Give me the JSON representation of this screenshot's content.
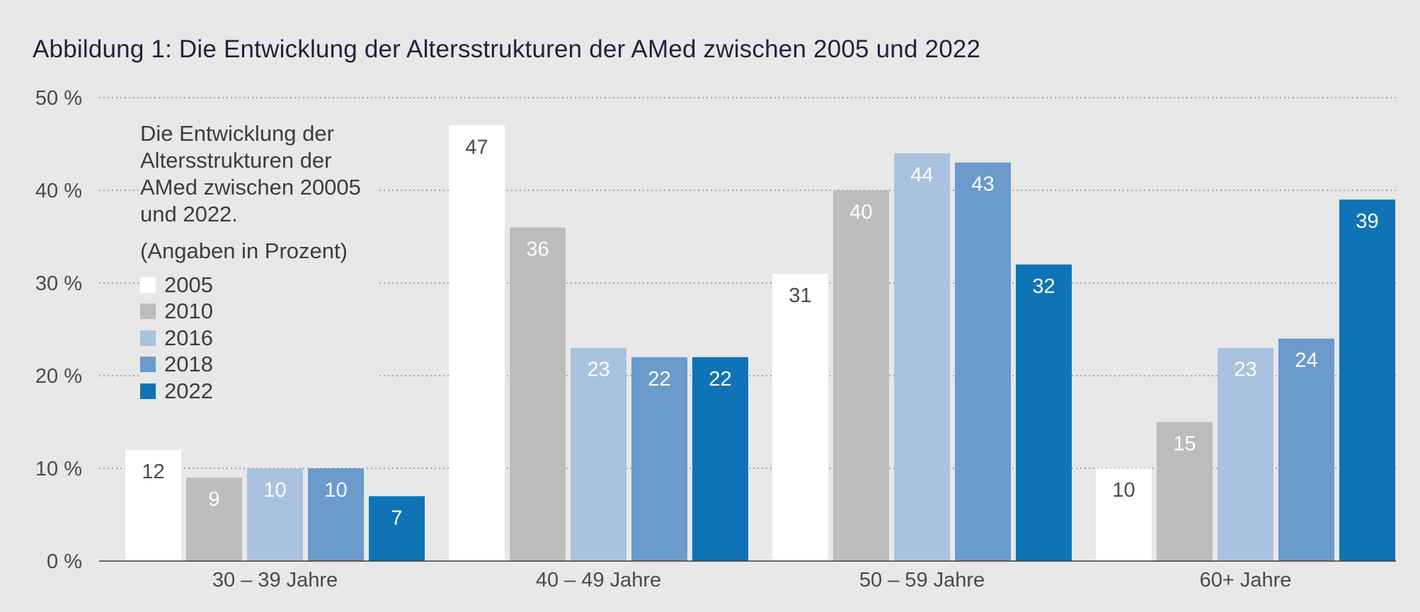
{
  "figure_title": "Abbildung 1: Die Entwicklung der Altersstrukturen der AMed zwischen 2005 und 2022",
  "legend": {
    "description": "Die Entwicklung der Altersstrukturen der AMed zwischen 20005 und 2022.",
    "note": "(Angaben in Prozent)"
  },
  "chart_data": {
    "type": "bar",
    "title": "Abbildung 1: Die Entwicklung der Altersstrukturen der AMed zwischen 2005 und 2022",
    "xlabel": "",
    "ylabel": "",
    "ylim": [
      0,
      50
    ],
    "yticks": [
      0,
      10,
      20,
      30,
      40,
      50
    ],
    "ytick_labels": [
      "0 %",
      "10 %",
      "20 %",
      "30 %",
      "40 %",
      "50 %"
    ],
    "grid": true,
    "legend_position": "top-left",
    "categories": [
      "30 – 39 Jahre",
      "40 – 49 Jahre",
      "50 – 59 Jahre",
      "60+ Jahre"
    ],
    "series": [
      {
        "name": "2005",
        "color": "#ffffff",
        "label_color": "#4a4a4a",
        "values": [
          12,
          47,
          31,
          10
        ]
      },
      {
        "name": "2010",
        "color": "#bdbdbd",
        "label_color": "#ffffff",
        "values": [
          9,
          36,
          40,
          15
        ]
      },
      {
        "name": "2016",
        "color": "#a9c2df",
        "label_color": "#ffffff",
        "values": [
          10,
          23,
          44,
          23
        ]
      },
      {
        "name": "2018",
        "color": "#6a9bcb",
        "label_color": "#ffffff",
        "values": [
          10,
          22,
          43,
          24
        ]
      },
      {
        "name": "2022",
        "color": "#0f74b5",
        "label_color": "#ffffff",
        "values": [
          7,
          22,
          32,
          39
        ]
      }
    ]
  }
}
